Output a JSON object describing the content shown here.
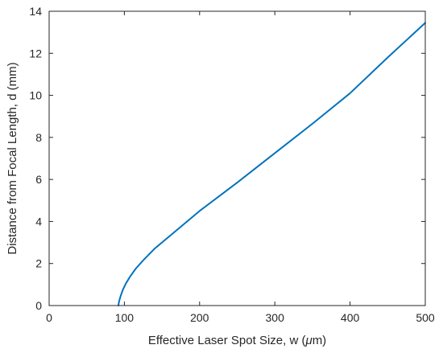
{
  "chart_data": {
    "type": "line",
    "title": "",
    "xlabel": "Effective Laser Spot Size, w (",
    "xlabel_greek": "μ",
    "xlabel_tail": "m)",
    "ylabel": "Distance from Focal Length, d (mm)",
    "xlim": [
      0,
      500
    ],
    "ylim": [
      0,
      14
    ],
    "xticks": [
      0,
      100,
      200,
      300,
      400,
      500
    ],
    "yticks": [
      0,
      2,
      4,
      6,
      8,
      10,
      12,
      14
    ],
    "grid": false,
    "legend": "none",
    "series": [
      {
        "color": "#0072BD",
        "x": [
          92,
          93,
          95,
          98,
          102,
          108,
          115,
          125,
          140,
          160,
          200,
          250,
          300,
          350,
          400,
          450,
          500
        ],
        "y": [
          0.0,
          0.2,
          0.45,
          0.75,
          1.05,
          1.4,
          1.75,
          2.15,
          2.7,
          3.3,
          4.5,
          5.85,
          7.25,
          8.65,
          10.1,
          11.8,
          13.45
        ]
      }
    ]
  }
}
